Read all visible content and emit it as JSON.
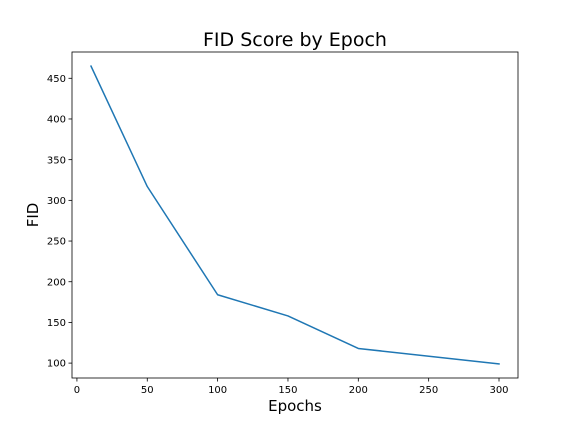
{
  "chart_data": {
    "type": "line",
    "title": "FID Score by Epoch",
    "xlabel": "Epochs",
    "ylabel": "FID",
    "x": [
      10,
      50,
      100,
      150,
      200,
      300
    ],
    "series": [
      {
        "values": [
          465,
          317,
          184,
          158,
          118,
          99
        ],
        "color": "#1f77b4"
      }
    ],
    "xlim": [
      -3.5,
      313.5
    ],
    "ylim": [
      81.7,
      482.3
    ],
    "xticks": [
      0,
      50,
      100,
      150,
      200,
      250,
      300
    ],
    "yticks": [
      100,
      150,
      200,
      250,
      300,
      350,
      400,
      450
    ],
    "grid": false,
    "legend": "none"
  }
}
